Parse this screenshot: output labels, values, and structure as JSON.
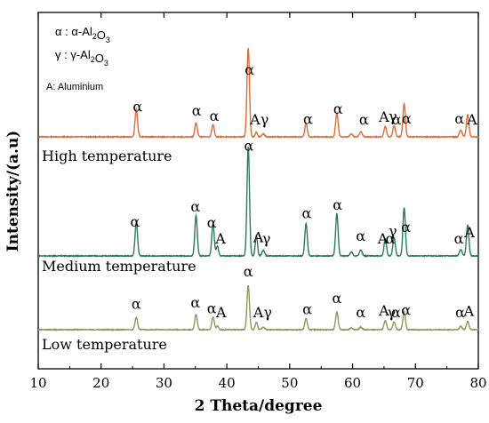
{
  "chart_data": {
    "type": "line",
    "xlabel": "2 Theta/degree",
    "ylabel": "Intensity/(a.u)",
    "xlim": [
      10,
      80
    ],
    "xticks": [
      "10",
      "20",
      "30",
      "40",
      "50",
      "60",
      "70",
      "80"
    ],
    "grid": false,
    "legend": {
      "lines": [
        {
          "sym": "α",
          "mid": " : α-Al",
          "sub1": "2",
          "o": "O",
          "sub2": "3"
        },
        {
          "sym": "γ",
          "mid": " : γ-Al",
          "sub1": "2",
          "o": "O",
          "sub2": "3"
        }
      ],
      "note": "A: Aluminium"
    },
    "peaks": [
      {
        "x": 25.6,
        "h": 0.31,
        "w": 0.28
      },
      {
        "x": 35.1,
        "h": 0.4,
        "w": 0.28
      },
      {
        "x": 37.8,
        "h": 0.38,
        "w": 0.28
      },
      {
        "x": 38.5,
        "h": 0.07,
        "w": 0.25
      },
      {
        "x": 43.4,
        "h": 1.0,
        "w": 0.28
      },
      {
        "x": 44.7,
        "h": 0.17,
        "w": 0.25
      },
      {
        "x": 45.8,
        "h": 0.05,
        "w": 0.3
      },
      {
        "x": 52.6,
        "h": 0.36,
        "w": 0.28
      },
      {
        "x": 57.5,
        "h": 0.49,
        "w": 0.28
      },
      {
        "x": 59.8,
        "h": 0.04,
        "w": 0.3
      },
      {
        "x": 61.3,
        "h": 0.05,
        "w": 0.3
      },
      {
        "x": 65.2,
        "h": 0.18,
        "w": 0.28
      },
      {
        "x": 66.6,
        "h": 0.16,
        "w": 0.28
      },
      {
        "x": 68.2,
        "h": 0.57,
        "w": 0.28
      },
      {
        "x": 77.2,
        "h": 0.06,
        "w": 0.3
      },
      {
        "x": 78.3,
        "h": 0.32,
        "w": 0.28
      }
    ],
    "series": [
      {
        "name": "High temperature",
        "color": "#e06a3b",
        "scale": [
          1.0,
          0.4,
          0.36,
          0.0,
          1.0,
          0.3,
          0.7,
          0.41,
          0.55,
          0.8,
          1.2,
          0.66,
          0.8,
          0.65,
          1.3,
          0.78
        ]
      },
      {
        "name": "Medium temperature",
        "color": "#2e7b5a",
        "scale": [
          1.0,
          0.92,
          0.78,
          1.3,
          1.0,
          1.1,
          1.0,
          0.83,
          0.79,
          0.9,
          1.1,
          0.88,
          1.05,
          0.77,
          1.0,
          0.88
        ]
      },
      {
        "name": "Low temperature",
        "color": "#8a9a5c",
        "scale": [
          0.69,
          0.67,
          0.58,
          0.9,
          0.78,
          0.76,
          0.9,
          0.55,
          0.64,
          0.8,
          0.9,
          0.89,
          0.88,
          0.56,
          1.0,
          0.45
        ]
      }
    ],
    "labels": [
      {
        "x": 25.8,
        "s": 0,
        "text": "α"
      },
      {
        "x": 35.2,
        "s": 0,
        "text": "α"
      },
      {
        "x": 38.0,
        "s": 0,
        "text": "α"
      },
      {
        "x": 43.6,
        "s": 0,
        "text": "α"
      },
      {
        "x": 44.5,
        "s": 0,
        "text": "A"
      },
      {
        "x": 46.0,
        "s": 0,
        "text": "γ"
      },
      {
        "x": 52.9,
        "s": 0,
        "text": "α"
      },
      {
        "x": 57.7,
        "s": 0,
        "text": "α"
      },
      {
        "x": 61.8,
        "s": 0,
        "text": "α"
      },
      {
        "x": 65.0,
        "s": 0,
        "text": "A"
      },
      {
        "x": 66.4,
        "s": 0,
        "text": "γ"
      },
      {
        "x": 67.0,
        "s": 0,
        "text": "α"
      },
      {
        "x": 68.6,
        "s": 0,
        "text": "α"
      },
      {
        "x": 77.0,
        "s": 0,
        "text": "α"
      },
      {
        "x": 79.0,
        "s": 0,
        "text": "A"
      },
      {
        "x": 25.4,
        "s": 1,
        "text": "α"
      },
      {
        "x": 35.0,
        "s": 1,
        "text": "α"
      },
      {
        "x": 37.6,
        "s": 1,
        "text": "α"
      },
      {
        "x": 39.0,
        "s": 1,
        "text": "A"
      },
      {
        "x": 43.5,
        "s": 1,
        "text": "α"
      },
      {
        "x": 45.0,
        "s": 1,
        "text": "A"
      },
      {
        "x": 46.3,
        "s": 1,
        "text": "γ"
      },
      {
        "x": 52.7,
        "s": 1,
        "text": "α"
      },
      {
        "x": 57.6,
        "s": 1,
        "text": "α"
      },
      {
        "x": 61.3,
        "s": 1,
        "text": "α"
      },
      {
        "x": 64.8,
        "s": 1,
        "text": "A"
      },
      {
        "x": 66.4,
        "s": 1,
        "text": "γ"
      },
      {
        "x": 66.0,
        "s": 1,
        "text": "α"
      },
      {
        "x": 68.5,
        "s": 1,
        "text": "α"
      },
      {
        "x": 76.9,
        "s": 1,
        "text": "α"
      },
      {
        "x": 78.6,
        "s": 1,
        "text": "A"
      },
      {
        "x": 25.6,
        "s": 2,
        "text": "α"
      },
      {
        "x": 35.0,
        "s": 2,
        "text": "α"
      },
      {
        "x": 37.6,
        "s": 2,
        "text": "α"
      },
      {
        "x": 39.1,
        "s": 2,
        "text": "A"
      },
      {
        "x": 43.4,
        "s": 2,
        "text": "α"
      },
      {
        "x": 45.0,
        "s": 2,
        "text": "A"
      },
      {
        "x": 46.5,
        "s": 2,
        "text": "γ"
      },
      {
        "x": 52.8,
        "s": 2,
        "text": "α"
      },
      {
        "x": 57.5,
        "s": 2,
        "text": "α"
      },
      {
        "x": 61.3,
        "s": 2,
        "text": "α"
      },
      {
        "x": 65.0,
        "s": 2,
        "text": "A"
      },
      {
        "x": 66.2,
        "s": 2,
        "text": "γ"
      },
      {
        "x": 66.9,
        "s": 2,
        "text": "α"
      },
      {
        "x": 68.5,
        "s": 2,
        "text": "α"
      },
      {
        "x": 77.1,
        "s": 2,
        "text": "α"
      },
      {
        "x": 78.5,
        "s": 2,
        "text": "A"
      }
    ]
  }
}
